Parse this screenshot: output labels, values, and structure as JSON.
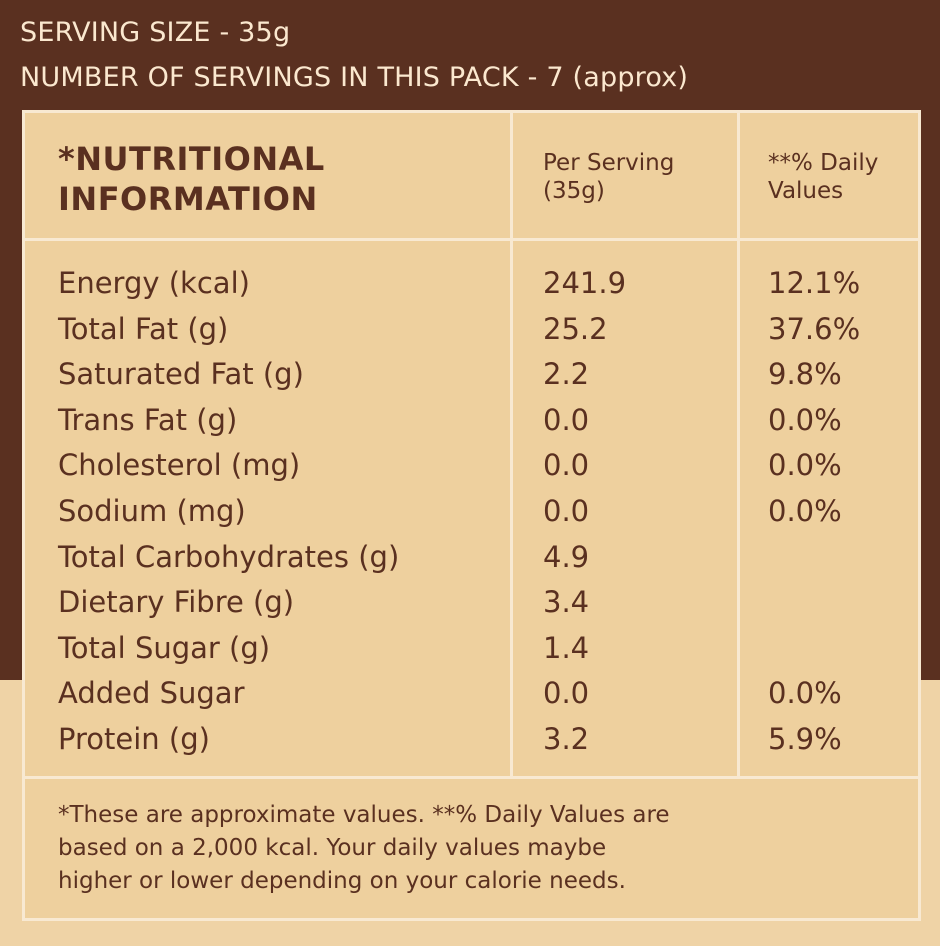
{
  "header": {
    "serving_size": "SERVING SIZE - 35g",
    "servings_per_pack": "NUMBER OF SERVINGS IN THIS PACK - 7 (approx)"
  },
  "table": {
    "title_line1": "*NUTRITIONAL",
    "title_line2": "INFORMATION",
    "per_serving_line1": "Per Serving",
    "per_serving_line2": "(35g)",
    "daily_values_line1": "**% Daily",
    "daily_values_line2": "Values",
    "rows": [
      {
        "nutrient": "Energy (kcal)",
        "amount": "241.9",
        "dv": "12.1%"
      },
      {
        "nutrient": "Total Fat (g)",
        "amount": "25.2",
        "dv": "37.6%"
      },
      {
        "nutrient": "Saturated Fat (g)",
        "amount": "2.2",
        "dv": "9.8%"
      },
      {
        "nutrient": "Trans Fat (g)",
        "amount": "0.0",
        "dv": "0.0%"
      },
      {
        "nutrient": "Cholesterol (mg)",
        "amount": "0.0",
        "dv": "0.0%"
      },
      {
        "nutrient": "Sodium (mg)",
        "amount": "0.0",
        "dv": "0.0%"
      },
      {
        "nutrient": "Total Carbohydrates (g)",
        "amount": "4.9",
        "dv": ""
      },
      {
        "nutrient": "Dietary Fibre (g)",
        "amount": "3.4",
        "dv": ""
      },
      {
        "nutrient": "Total Sugar (g)",
        "amount": "1.4",
        "dv": ""
      },
      {
        "nutrient": "Added Sugar",
        "amount": "0.0",
        "dv": "0.0%"
      },
      {
        "nutrient": "Protein (g)",
        "amount": "3.2",
        "dv": "5.9%"
      }
    ],
    "footnote_line1": "*These are approximate values. **% Daily Values are",
    "footnote_line2": "based on a 2,000 kcal. Your daily values maybe",
    "footnote_line3": "higher or lower depending on your calorie needs."
  },
  "colors": {
    "brown": "#5a3020",
    "panel": "#eed09e",
    "border": "#f8e9d2"
  }
}
